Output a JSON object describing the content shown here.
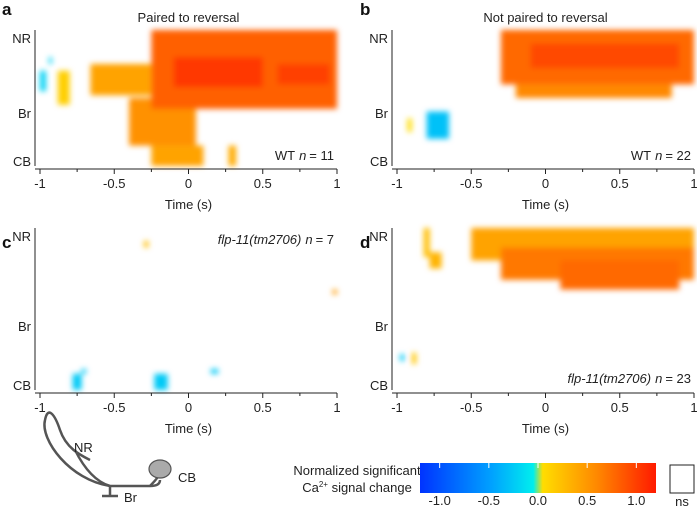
{
  "chart_data": [
    {
      "type": "heatmap",
      "panel": "a",
      "title": "Paired to reversal",
      "annotation": "WT",
      "n_label": "n",
      "n_value": "= 11",
      "xlabel": "Time (s)",
      "xlim": [
        -1,
        1
      ],
      "xticks": [
        "-1",
        "-0.5",
        "0",
        "0.5",
        "1"
      ],
      "ylabels": [
        "NR",
        "Br",
        "CB"
      ],
      "regions": [
        {
          "t": [
            -1.0,
            -0.96
          ],
          "p": [
            0.3,
            0.45
          ],
          "v": -0.2
        },
        {
          "t": [
            -0.94,
            -0.92
          ],
          "p": [
            0.2,
            0.25
          ],
          "v": -0.2
        },
        {
          "t": [
            -0.88,
            -0.8
          ],
          "p": [
            0.3,
            0.55
          ],
          "v": 0.1
        },
        {
          "t": [
            -0.66,
            -0.25
          ],
          "p": [
            0.25,
            0.48
          ],
          "v": 0.35
        },
        {
          "t": [
            -0.4,
            0.05
          ],
          "p": [
            0.5,
            0.85
          ],
          "v": 0.45
        },
        {
          "t": [
            -0.25,
            0.1
          ],
          "p": [
            0.85,
            1.0
          ],
          "v": 0.35
        },
        {
          "t": [
            -0.25,
            1.0
          ],
          "p": [
            0.0,
            0.58
          ],
          "v": 0.75
        },
        {
          "t": [
            -0.1,
            0.5
          ],
          "p": [
            0.2,
            0.42
          ],
          "v": 1.0
        },
        {
          "t": [
            0.6,
            0.95
          ],
          "p": [
            0.25,
            0.4
          ],
          "v": 0.95
        },
        {
          "t": [
            0.27,
            0.32
          ],
          "p": [
            0.85,
            1.0
          ],
          "v": 0.3
        }
      ]
    },
    {
      "type": "heatmap",
      "panel": "b",
      "title": "Not paired to reversal",
      "annotation": "WT",
      "n_label": "n",
      "n_value": "= 22",
      "xlabel": "Time (s)",
      "xlim": [
        -1,
        1
      ],
      "xticks": [
        "-1",
        "-0.5",
        "0",
        "0.5",
        "1"
      ],
      "ylabels": [
        "NR",
        "Br",
        "CB"
      ],
      "regions": [
        {
          "t": [
            -0.3,
            1.0
          ],
          "p": [
            0.0,
            0.4
          ],
          "v": 0.7
        },
        {
          "t": [
            -0.1,
            0.9
          ],
          "p": [
            0.1,
            0.28
          ],
          "v": 0.9
        },
        {
          "t": [
            -0.2,
            0.85
          ],
          "p": [
            0.4,
            0.5
          ],
          "v": 0.5
        },
        {
          "t": [
            -0.8,
            -0.65
          ],
          "p": [
            0.6,
            0.8
          ],
          "v": -0.3
        },
        {
          "t": [
            -0.93,
            -0.9
          ],
          "p": [
            0.65,
            0.75
          ],
          "v": 0.02
        }
      ]
    },
    {
      "type": "heatmap",
      "panel": "c",
      "title": "",
      "annotation": "flp-11(tm2706)",
      "n_label": "n",
      "n_value": "= 7",
      "xlabel": "Time (s)",
      "xlim": [
        -1,
        1
      ],
      "xticks": [
        "-1",
        "-0.5",
        "0",
        "0.5",
        "1"
      ],
      "ylabels": [
        "NR",
        "Br",
        "CB"
      ],
      "regions": [
        {
          "t": [
            -0.3,
            -0.27
          ],
          "p": [
            0.08,
            0.12
          ],
          "v": 0.2
        },
        {
          "t": [
            0.97,
            1.0
          ],
          "p": [
            0.38,
            0.41
          ],
          "v": 0.4
        },
        {
          "t": [
            -0.78,
            -0.72
          ],
          "p": [
            0.9,
            1.0
          ],
          "v": -0.25
        },
        {
          "t": [
            -0.72,
            -0.69
          ],
          "p": [
            0.87,
            0.9
          ],
          "v": -0.25
        },
        {
          "t": [
            -0.23,
            -0.14
          ],
          "p": [
            0.9,
            1.0
          ],
          "v": -0.25
        },
        {
          "t": [
            0.15,
            0.2
          ],
          "p": [
            0.87,
            0.9
          ],
          "v": -0.25
        }
      ]
    },
    {
      "type": "heatmap",
      "panel": "d",
      "title": "",
      "annotation": "flp-11(tm2706)",
      "n_label": "n",
      "n_value": "= 23",
      "xlabel": "Time (s)",
      "xlim": [
        -1,
        1
      ],
      "xticks": [
        "-1",
        "-0.5",
        "0",
        "0.5",
        "1"
      ],
      "ylabels": [
        "NR",
        "Br",
        "CB"
      ],
      "regions": [
        {
          "t": [
            -0.82,
            -0.78
          ],
          "p": [
            0.0,
            0.18
          ],
          "v": 0.2
        },
        {
          "t": [
            -0.78,
            -0.7
          ],
          "p": [
            0.15,
            0.25
          ],
          "v": 0.25
        },
        {
          "t": [
            -0.5,
            1.0
          ],
          "p": [
            0.0,
            0.2
          ],
          "v": 0.35
        },
        {
          "t": [
            -0.3,
            1.0
          ],
          "p": [
            0.12,
            0.32
          ],
          "v": 0.6
        },
        {
          "t": [
            0.1,
            0.9
          ],
          "p": [
            0.2,
            0.38
          ],
          "v": 0.7
        },
        {
          "t": [
            -0.9,
            -0.87
          ],
          "p": [
            0.77,
            0.84
          ],
          "v": 0.15
        },
        {
          "t": [
            -0.98,
            -0.95
          ],
          "p": [
            0.78,
            0.82
          ],
          "v": -0.25
        }
      ]
    }
  ],
  "panel_labels": [
    "a",
    "b",
    "c",
    "d"
  ],
  "diagram": {
    "nr": "NR",
    "br": "Br",
    "cb": "CB"
  },
  "colorbar": {
    "title_line1": "Normalized  significant",
    "title_line2_pre": "Ca",
    "title_line2_sup": "2+",
    "title_line2_post": " signal change",
    "ticks": [
      "-1.0",
      "-0.5",
      "0.0",
      "0.5",
      "1.0"
    ],
    "ns_label": "ns",
    "colors": [
      "#0033ff",
      "#00aaff",
      "#00eeff",
      "#ffdd00",
      "#ff8800",
      "#ff2200"
    ]
  }
}
